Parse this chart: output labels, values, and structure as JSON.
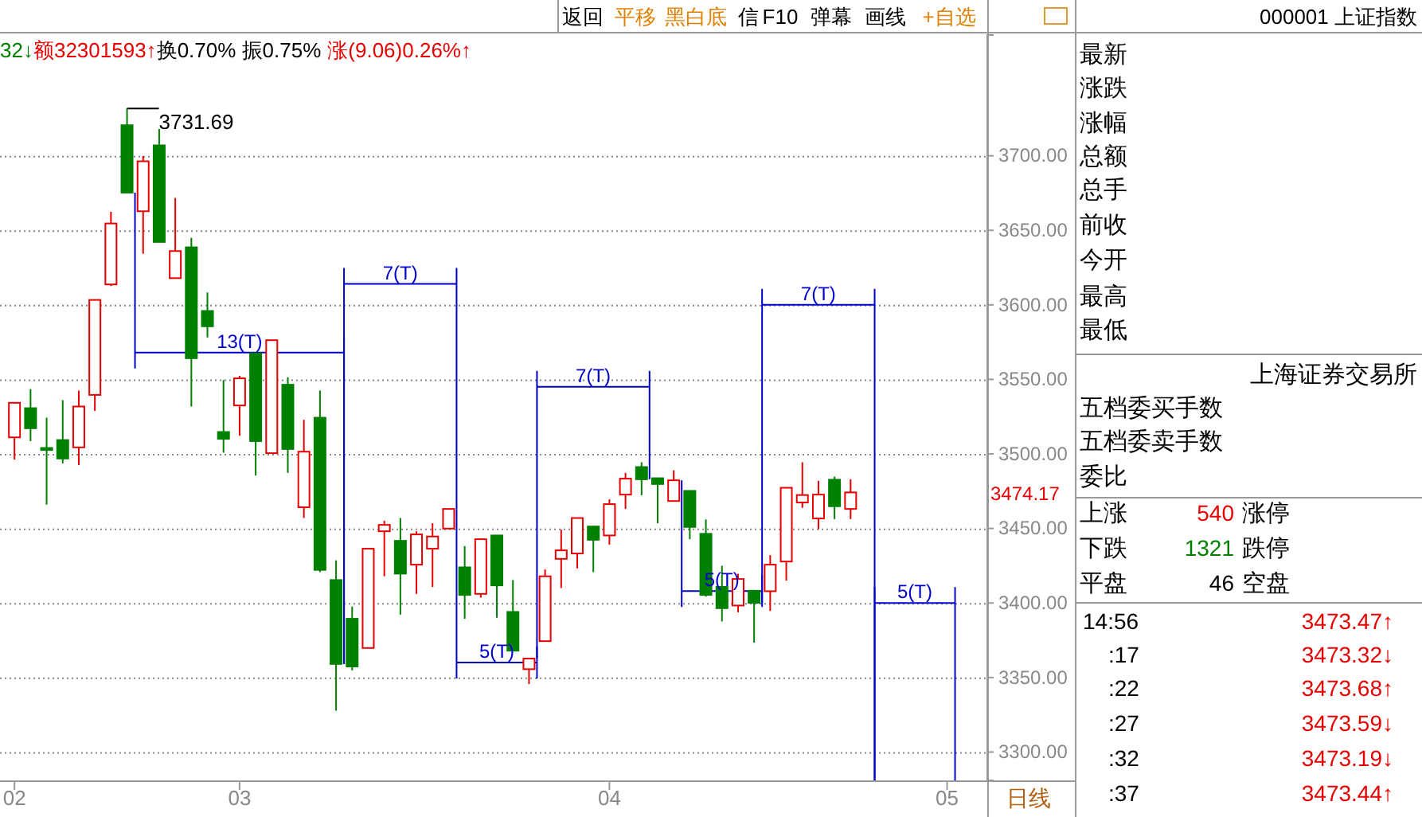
{
  "chart_data": {
    "type": "candlestick",
    "title": "000001 上证指数",
    "categories": [
      "02",
      null,
      null,
      null,
      null,
      null,
      null,
      null,
      null,
      null,
      null,
      null,
      null,
      null,
      "03",
      null,
      null,
      null,
      null,
      null,
      null,
      null,
      null,
      null,
      null,
      null,
      null,
      null,
      null,
      null,
      null,
      null,
      null,
      null,
      null,
      null,
      null,
      "04",
      null,
      null,
      null,
      null,
      null,
      null,
      null,
      null,
      null,
      null,
      null,
      null,
      null,
      null,
      null,
      null,
      null,
      null,
      null,
      null,
      "05"
    ],
    "ohlc": [
      [
        3511.1,
        3534.3,
        3496.2,
        3534.3
      ],
      [
        3530.7,
        3543.5,
        3508.6,
        3517.2
      ],
      [
        3504,
        3524.3,
        3466,
        3502.6
      ],
      [
        3509.3,
        3536.1,
        3493.7,
        3496.9
      ],
      [
        3504.4,
        3542.5,
        3492.6,
        3531.8
      ],
      [
        3539.6,
        3603.3,
        3528.9,
        3603.3
      ],
      [
        3613.7,
        3662.4,
        3612.6,
        3654.6
      ],
      [
        3720.5,
        3731.69,
        3675.3,
        3675.3
      ],
      [
        3662.8,
        3699.8,
        3634.3,
        3696.3
      ],
      [
        3707,
        3718,
        3642.2,
        3642.2
      ],
      [
        3617.9,
        3671.7,
        3617.9,
        3636.1
      ],
      [
        3638.6,
        3645,
        3531.8,
        3564.2
      ],
      [
        3595.9,
        3608.3,
        3578.1,
        3585.6
      ],
      [
        3514.7,
        3549.6,
        3500.8,
        3510.1
      ],
      [
        3532.5,
        3552.4,
        3512.2,
        3550.7
      ],
      [
        3567.4,
        3567.4,
        3485.5,
        3508.6
      ],
      [
        3500.5,
        3576.3,
        3500.5,
        3576.3
      ],
      [
        3546.4,
        3551.4,
        3487.3,
        3503.3
      ],
      [
        3464.2,
        3522.9,
        3457,
        3501.5
      ],
      [
        3524.3,
        3542.5,
        3420.7,
        3422.2
      ],
      [
        3415.4,
        3428.6,
        3327.8,
        3359.1
      ],
      [
        3389.4,
        3397.6,
        3354.8,
        3357.4
      ],
      [
        3369.8,
        3436.4,
        3369.8,
        3436.4
      ],
      [
        3448.1,
        3455.2,
        3417.9,
        3452.4
      ],
      [
        3441.7,
        3457,
        3392.2,
        3419.7
      ],
      [
        3425.7,
        3448.1,
        3406.1,
        3446
      ],
      [
        3436.4,
        3453.5,
        3410.7,
        3444.6
      ],
      [
        3449.9,
        3463.1,
        3449.9,
        3463.1
      ],
      [
        3423.9,
        3438.2,
        3389.4,
        3405.4
      ],
      [
        3406.1,
        3442.8,
        3403.6,
        3442.8
      ],
      [
        3445.3,
        3445.3,
        3390.1,
        3411.8
      ],
      [
        3394,
        3415.4,
        3368,
        3368
      ],
      [
        3355.6,
        3362.7,
        3345.6,
        3362.7
      ],
      [
        3374.4,
        3422.5,
        3374.4,
        3417.9
      ],
      [
        3429.6,
        3449.2,
        3410,
        3435.3
      ],
      [
        3433.2,
        3457,
        3423.2,
        3457
      ],
      [
        3451.3,
        3451.3,
        3420.7,
        3442.4
      ],
      [
        3445.3,
        3469.5,
        3439.2,
        3466.3
      ],
      [
        3472.7,
        3487.3,
        3463.1,
        3483.4
      ],
      [
        3491.2,
        3494.4,
        3472.3,
        3483
      ],
      [
        3483.7,
        3483.7,
        3453.5,
        3479.8
      ],
      [
        3468.4,
        3489,
        3468.4,
        3482.3
      ],
      [
        3475.2,
        3475.2,
        3442.8,
        3451
      ],
      [
        3446.4,
        3456,
        3404.3,
        3405.4
      ],
      [
        3410.8,
        3425,
        3387.6,
        3396.5
      ],
      [
        3398.3,
        3419.6,
        3393.7,
        3416.1
      ],
      [
        3408.2,
        3408.2,
        3373.4,
        3400.1
      ],
      [
        3407.9,
        3432.1,
        3394.7,
        3425.7
      ],
      [
        3427.8,
        3477.3,
        3415,
        3477.3
      ],
      [
        3467.4,
        3494.4,
        3463.8,
        3472.4
      ],
      [
        3456.7,
        3482,
        3449.5,
        3472.7
      ],
      [
        3482.7,
        3484.8,
        3456.3,
        3464.9
      ],
      [
        3463.1,
        3483,
        3456.3,
        3474.17
      ],
      null,
      null,
      null,
      null,
      null,
      null
    ],
    "ylim": [
      3281,
      3781
    ],
    "yticks": [
      {
        "value": 3300,
        "label": "3300.00"
      },
      {
        "value": 3350,
        "label": "3350.00"
      },
      {
        "value": 3400,
        "label": "3400.00"
      },
      {
        "value": 3450,
        "label": "3450.00"
      },
      {
        "value": 3500,
        "label": "3500.00"
      },
      {
        "value": 3550,
        "label": "3550.00"
      },
      {
        "value": 3600,
        "label": "3600.00"
      },
      {
        "value": 3650,
        "label": "3650.00"
      },
      {
        "value": 3700,
        "label": "3700.00"
      }
    ],
    "grid": "y",
    "annotations": [
      "3731.69",
      "3474.17",
      "13(T)",
      "7(T)",
      "5(T)",
      "7(T)",
      "5(T)",
      "7(T)",
      "5(T)",
      "返回",
      "平移",
      "黑白底",
      "信",
      "F10",
      "弹幕",
      "画线",
      "+自选",
      "32↓",
      "额32301593↑",
      "换0.70% 振0.75%",
      "涨(9.06)0.26%↑",
      "日线",
      "最新",
      "涨跌",
      "涨幅",
      "总额",
      "总手",
      "前收",
      "今开",
      "最高",
      "最低",
      "上海证券交易所",
      "五档委买手数",
      "五档委卖手数",
      "委比",
      "上涨",
      "540",
      "涨停",
      "下跌",
      "1321",
      "跌停",
      "平盘",
      "46",
      "空盘",
      "14:56",
      "3473.47↑",
      ":17",
      "3473.32↓",
      ":22",
      "3473.68↑",
      ":27",
      "3473.59↓",
      ":32",
      "3473.19↓",
      ":37",
      "3473.44↑"
    ]
  }
}
